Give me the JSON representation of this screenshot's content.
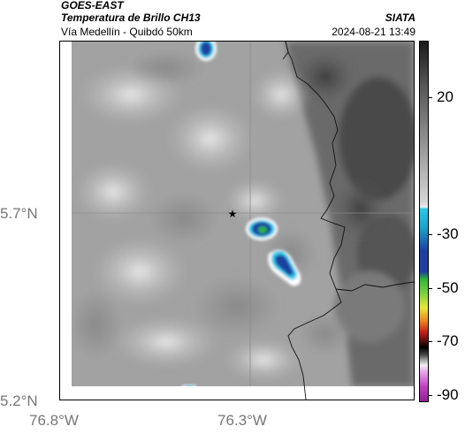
{
  "header": {
    "satellite": "GOES-EAST",
    "product": "Temperatura de Brillo CH13",
    "source": "SIATA",
    "route": "Vía Medellín - Quibdó 50km",
    "datetime": "2024-08-21 13:49"
  },
  "axes": {
    "latitude_ticks": [
      "5.7°N",
      "5.2°N"
    ],
    "longitude_ticks": [
      "76.8°W",
      "76.3°W"
    ]
  },
  "colorbar": {
    "labels": [
      "20",
      "-30",
      "-50",
      "-70",
      "-90"
    ],
    "colors": {
      "warm_dark": "#1a1a1a",
      "gray_mid": "#9a9a9a",
      "light": "#eeeeee",
      "cyan": "#2ec8e8",
      "blue": "#1e3fa0",
      "green": "#2cb53a",
      "yellow": "#e8e83a",
      "orange": "#e87a1e",
      "red": "#c01818",
      "black": "#000000",
      "magenta": "#c040c0"
    }
  },
  "map": {
    "marker": "★",
    "features": [
      "star-marker",
      "border-lines",
      "convective-cells",
      "grid-lines"
    ]
  }
}
